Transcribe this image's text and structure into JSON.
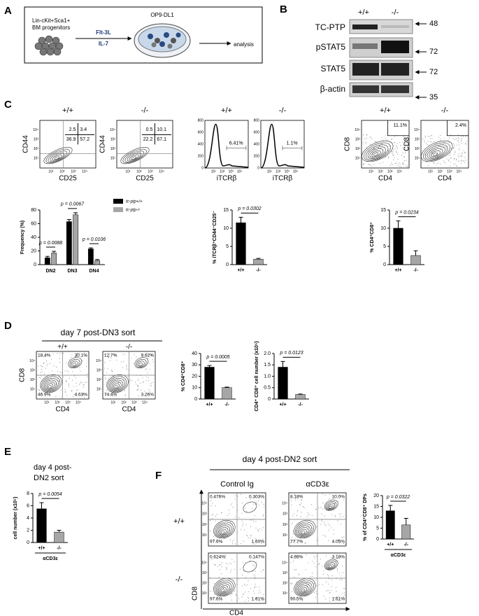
{
  "panel_labels": [
    "A",
    "B",
    "C",
    "D",
    "E",
    "F"
  ],
  "panel_a": {
    "cells_label": [
      "Lin-cKit+Sca1+",
      "BM progenitors"
    ],
    "factors": [
      "Flt-3L",
      "IL-7"
    ],
    "culture": "OP9-DL1",
    "readout": "analysis"
  },
  "panel_b": {
    "genotypes": [
      "+/+",
      "-/-"
    ],
    "rows": [
      "TC-PTP",
      "pSTAT5",
      "STAT5",
      "β-actin"
    ],
    "markers": [
      "48",
      "72",
      "72",
      "35"
    ]
  },
  "flow_ticks": [
    "10¹",
    "10²",
    "10³",
    "10⁴"
  ],
  "panel_c": {
    "genotypes": [
      "+/+",
      "-/-",
      "+/+",
      "-/-",
      "+/+",
      "-/-"
    ],
    "hist_ticks": [
      "800",
      "600",
      "400",
      "200",
      "0"
    ],
    "plots": [
      {
        "kind": "quad",
        "xlabel": "CD25",
        "ylabel": "CD44",
        "labels": [
          "2.5",
          "3.4",
          "36.9",
          "57.2"
        ]
      },
      {
        "kind": "quad",
        "xlabel": "CD25",
        "ylabel": "CD44",
        "labels": [
          "0.5",
          "10.1",
          "22.2",
          "67.1"
        ]
      },
      {
        "kind": "hist",
        "xlabel": "iTCRβ",
        "labels": [
          "6.41%"
        ]
      },
      {
        "kind": "hist",
        "xlabel": "iTCRβ",
        "labels": [
          "1.1%"
        ]
      },
      {
        "kind": "corner",
        "xlabel": "CD4",
        "ylabel": "CD8",
        "labels": [
          "11.1%"
        ]
      },
      {
        "kind": "corner",
        "xlabel": "CD4",
        "ylabel": "CD8",
        "labels": [
          "2.4%"
        ]
      }
    ]
  },
  "panel_d": {
    "title": "day 7 post-DN3 sort",
    "genotypes": [
      "+/+",
      "-/-"
    ],
    "plots": [
      {
        "kind": "quad4",
        "xlabel": "CD4",
        "ylabel": "CD8",
        "labels": [
          "18.4%",
          "30.1%",
          "46.9%",
          "4.63%"
        ]
      },
      {
        "kind": "quad4",
        "xlabel": "CD4",
        "labels": [
          "12.7%",
          "9.62%",
          "74.4%",
          "3.26%"
        ]
      }
    ]
  },
  "panel_e": {
    "title": [
      "day 4 post-",
      "DN2 sort"
    ]
  },
  "panel_f": {
    "title": "day 4 post-DN2 sort",
    "conditions": [
      "Control Ig",
      "αCD3ε"
    ],
    "genotypes": [
      "+/+",
      "-/-"
    ],
    "xlabel": "CD4",
    "ylabel": "CD8",
    "plots": [
      {
        "labels": [
          "0.476%",
          "0.303%",
          "97.6%",
          "1.60%"
        ]
      },
      {
        "labels": [
          "8.18%",
          "10.0%",
          "77.7%",
          "4.05%"
        ]
      },
      {
        "labels": [
          "0.624%",
          "0.147%",
          "97.6%",
          "1.61%"
        ]
      },
      {
        "labels": [
          "4.69%",
          "3.18%",
          "90.5%",
          "1.61%"
        ]
      }
    ]
  },
  "chart_data": [
    {
      "type": "bar",
      "ylabel": "Frequency (%)",
      "categories": [
        "DN2",
        "DN3",
        "DN4"
      ],
      "series": [
        {
          "name": "tc-ptp+/+",
          "color": "#000000",
          "values": [
            10,
            63,
            23
          ],
          "errors": [
            2,
            3,
            1.5
          ]
        },
        {
          "name": "tc-ptp-/-",
          "color": "#a6a6a6",
          "values": [
            17,
            73,
            6
          ],
          "errors": [
            2.5,
            3,
            1.5
          ]
        }
      ],
      "annotations": [
        "p = 0.0088",
        "p = 0.0067",
        "p = 0.0106"
      ],
      "ylim": [
        0,
        80
      ],
      "yticks": [
        0,
        20,
        40,
        60,
        80
      ]
    },
    {
      "type": "bar",
      "ylabel": "% iTCRβ⁺CD44⁻CD25⁻",
      "categories": [
        "+/+",
        "-/-"
      ],
      "values": [
        11.5,
        1.5
      ],
      "errors": [
        1.5,
        0.2
      ],
      "colors": [
        "#000000",
        "#a6a6a6"
      ],
      "annotation": "p = 0.0302",
      "ylim": [
        0,
        15
      ],
      "yticks": [
        0,
        5,
        10,
        15
      ]
    },
    {
      "type": "bar",
      "ylabel": "% CD4⁺CD8⁺",
      "categories": [
        "+/+",
        "-/-"
      ],
      "values": [
        10,
        2.5
      ],
      "errors": [
        2,
        1.3
      ],
      "colors": [
        "#000000",
        "#a6a6a6"
      ],
      "annotation": "p = 0.0234",
      "ylim": [
        0,
        15
      ],
      "yticks": [
        0,
        5,
        10,
        15
      ]
    },
    {
      "type": "bar",
      "ylabel": "% CD4⁺CD8⁺",
      "categories": [
        "+/+",
        "-/-"
      ],
      "values": [
        28,
        10
      ],
      "errors": [
        1.5,
        0.5
      ],
      "colors": [
        "#000000",
        "#a6a6a6"
      ],
      "annotation": "p = 0.0005",
      "ylim": [
        0,
        40
      ],
      "yticks": [
        0,
        10,
        20,
        30,
        40
      ]
    },
    {
      "type": "bar",
      "ylabel": "CD4⁺ CD8⁺ cell number (x10⁵)",
      "categories": [
        "+/+",
        "-/-"
      ],
      "values": [
        1.4,
        0.2
      ],
      "errors": [
        0.25,
        0.02
      ],
      "colors": [
        "#000000",
        "#a6a6a6"
      ],
      "annotation": "p = 0.0123",
      "ylim": [
        0,
        2
      ],
      "yticks": [
        0,
        0.5,
        {
          "value": 1,
          "label": "1.0"
        },
        1.5,
        {
          "value": 2,
          "label": "2.0"
        }
      ]
    },
    {
      "type": "bar",
      "ylabel": "cell number (x10⁵)",
      "xlabel": "αCD3ε",
      "categories": [
        "+/+",
        "-/-"
      ],
      "values": [
        5.5,
        1.7
      ],
      "errors": [
        1,
        0.3
      ],
      "colors": [
        "#000000",
        "#a6a6a6"
      ],
      "annotation": "p = 0.0054",
      "ylim": [
        0,
        8
      ],
      "yticks": [
        0,
        2,
        4,
        6,
        8
      ]
    },
    {
      "type": "bar",
      "ylabel": "% of CD4⁺CD8⁺ DPs",
      "xlabel": "αCD3ε",
      "categories": [
        "+/+",
        "-/-"
      ],
      "values": [
        13,
        6.5
      ],
      "errors": [
        2.5,
        3
      ],
      "colors": [
        "#000000",
        "#a6a6a6"
      ],
      "annotation": "p = 0.0322",
      "ylim": [
        0,
        20
      ],
      "yticks": [
        0,
        5,
        10,
        15,
        20
      ]
    }
  ]
}
